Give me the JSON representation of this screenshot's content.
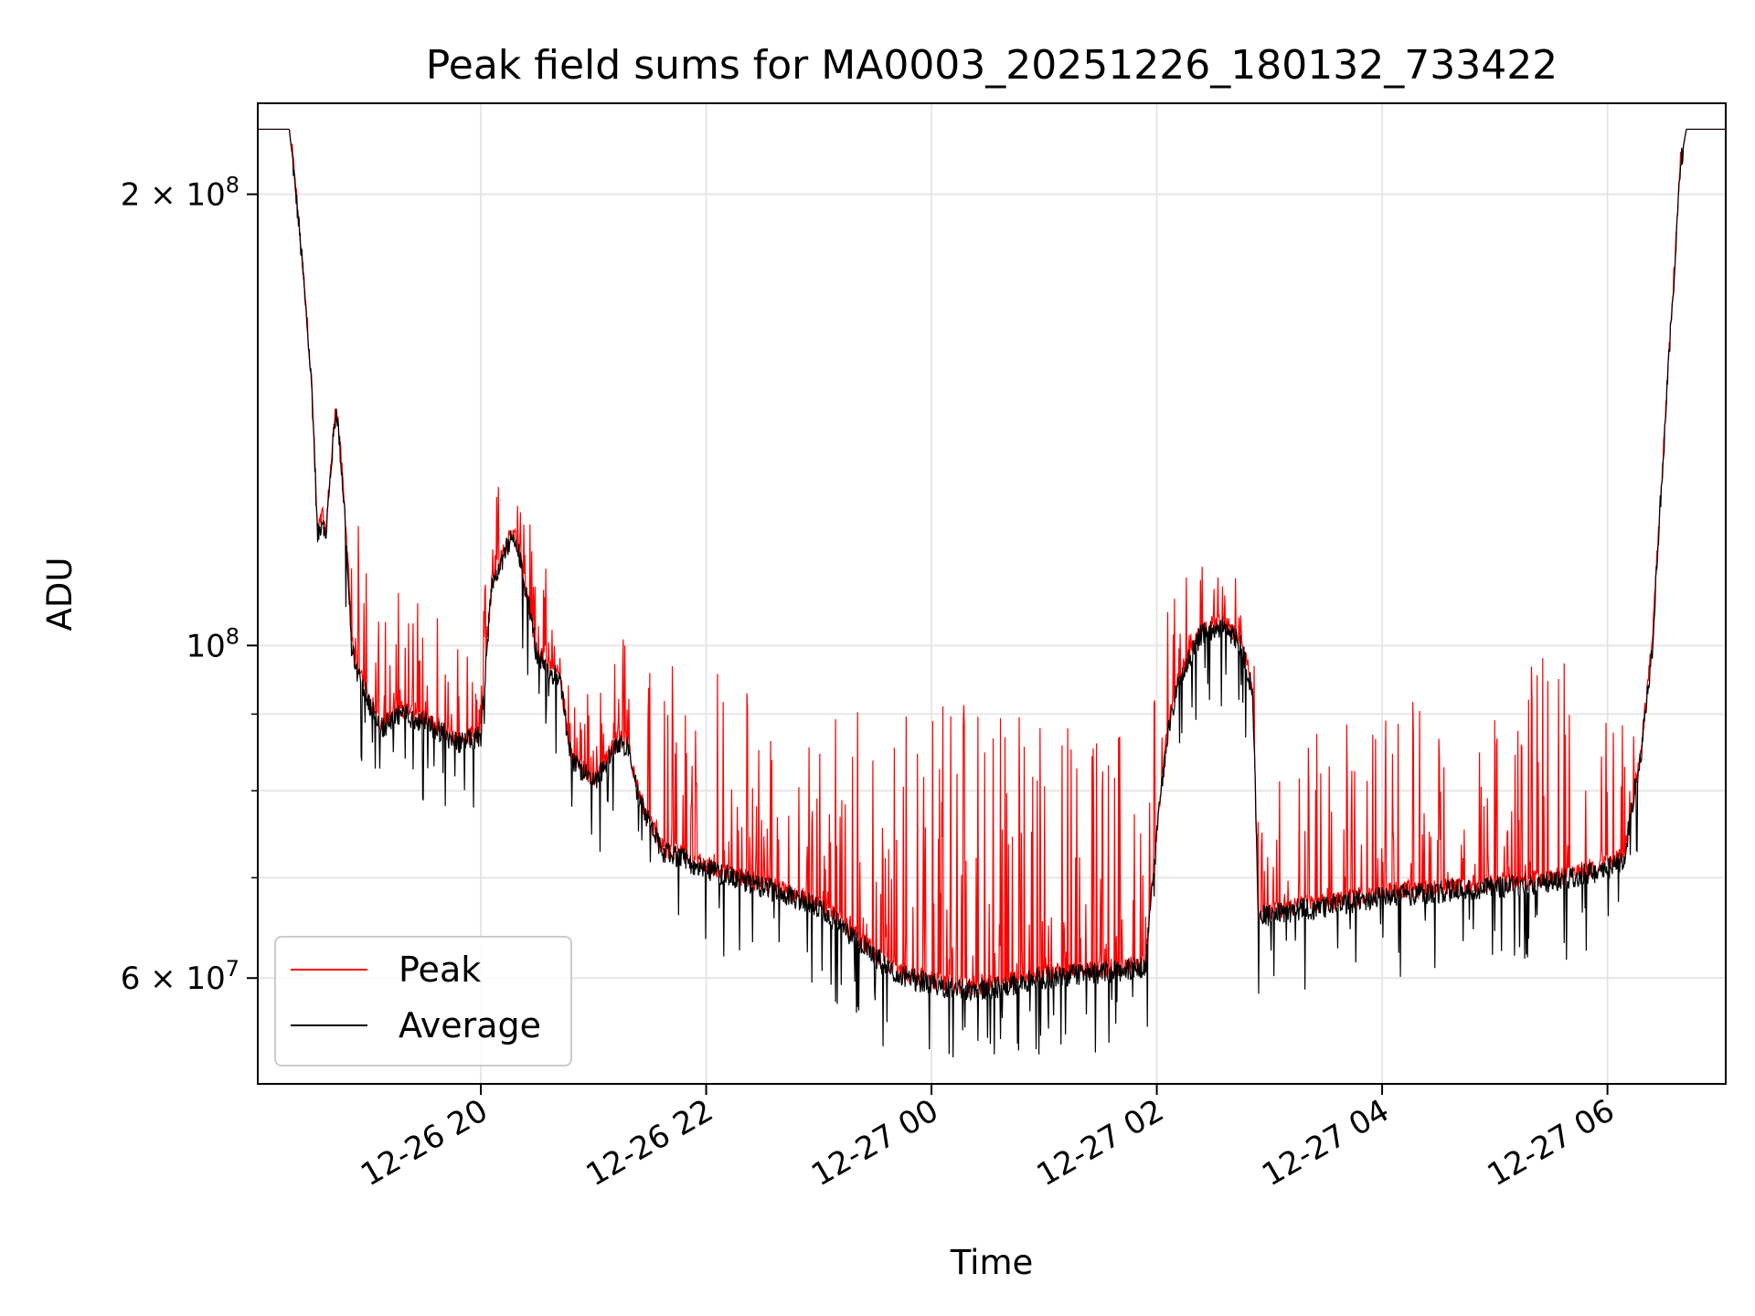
{
  "chart_data": {
    "type": "line",
    "title": "Peak field sums for MA0003_20251226_180132_733422",
    "xlabel": "Time",
    "ylabel": "ADU",
    "yscale": "log",
    "ylim": [
      51000000,
      230000000
    ],
    "xlim_hours": [
      18.02,
      31.05
    ],
    "grid": true,
    "legend_position": "lower-left",
    "x_ticks": [
      {
        "hour": 20,
        "label": "12-26 20"
      },
      {
        "hour": 22,
        "label": "12-26 22"
      },
      {
        "hour": 24,
        "label": "12-27 00"
      },
      {
        "hour": 26,
        "label": "12-27 02"
      },
      {
        "hour": 28,
        "label": "12-27 04"
      },
      {
        "hour": 30,
        "label": "12-27 06"
      }
    ],
    "y_major_ticks": [
      {
        "value": 60000000,
        "mantissa": "6",
        "base": "10",
        "exp": "7",
        "sep": " × "
      },
      {
        "value": 100000000,
        "mantissa": "",
        "base": "10",
        "exp": "8",
        "sep": ""
      },
      {
        "value": 200000000,
        "mantissa": "2",
        "base": "10",
        "exp": "8",
        "sep": " × "
      }
    ],
    "y_minor_ticks": [
      70000000,
      80000000,
      90000000
    ],
    "series": [
      {
        "name": "Peak",
        "color": "#ff0000"
      },
      {
        "name": "Average",
        "color": "#000000"
      }
    ],
    "baseline_hours": [
      18.02,
      18.3,
      18.4,
      18.5,
      18.55,
      18.6,
      18.62,
      18.7,
      18.72,
      18.8,
      18.85,
      18.9,
      19.0,
      19.1,
      19.3,
      19.5,
      19.6,
      19.8,
      20.0,
      20.1,
      20.25,
      20.3,
      20.35,
      20.5,
      20.7,
      20.8,
      21.0,
      21.1,
      21.2,
      21.3,
      21.4,
      21.6,
      22.0,
      22.5,
      23.0,
      23.3,
      23.6,
      23.8,
      24.0,
      24.2,
      24.5,
      25.0,
      25.5,
      25.9,
      26.1,
      26.2,
      26.4,
      26.6,
      26.75,
      26.85,
      26.9,
      27.5,
      28.0,
      29.0,
      29.5,
      30.0,
      30.15,
      30.3,
      30.4,
      30.5,
      30.6,
      30.65,
      30.7,
      31.05
    ],
    "average_baseline": [
      221000000,
      221000000,
      185000000,
      148000000,
      118000000,
      122000000,
      117000000,
      140000000,
      144000000,
      120000000,
      100000000,
      96000000,
      92000000,
      88000000,
      90000000,
      89000000,
      88000000,
      86000000,
      87000000,
      110000000,
      117000000,
      118000000,
      114000000,
      98000000,
      95000000,
      84000000,
      81000000,
      83000000,
      86000000,
      86000000,
      79000000,
      73000000,
      71000000,
      69000000,
      67000000,
      64000000,
      61000000,
      60000000,
      59500000,
      59000000,
      59000000,
      60000000,
      60500000,
      61000000,
      88000000,
      95000000,
      102000000,
      103000000,
      100000000,
      93000000,
      66000000,
      67000000,
      68000000,
      69000000,
      69500000,
      71000000,
      72000000,
      85000000,
      100000000,
      135000000,
      180000000,
      210000000,
      221000000,
      221000000
    ],
    "peak_spike_max": [
      0,
      0,
      0,
      0,
      0,
      0,
      0,
      0,
      0,
      0,
      25000000,
      25000000,
      25000000,
      20000000,
      20000000,
      20000000,
      20000000,
      15000000,
      15000000,
      15000000,
      15000000,
      15000000,
      10000000,
      20000000,
      20000000,
      14000000,
      14000000,
      10000000,
      12000000,
      18000000,
      20000000,
      25000000,
      28000000,
      25000000,
      25000000,
      28000000,
      30000000,
      33000000,
      32000000,
      32000000,
      33000000,
      33000000,
      30000000,
      28000000,
      18000000,
      15000000,
      12000000,
      12000000,
      10000000,
      10000000,
      18000000,
      22000000,
      25000000,
      25000000,
      30000000,
      22000000,
      18000000,
      0,
      0,
      0,
      0,
      0,
      0,
      0
    ]
  },
  "legend": {
    "entries": [
      {
        "label": "Peak",
        "color": "#ff0000"
      },
      {
        "label": "Average",
        "color": "#000000"
      }
    ]
  }
}
